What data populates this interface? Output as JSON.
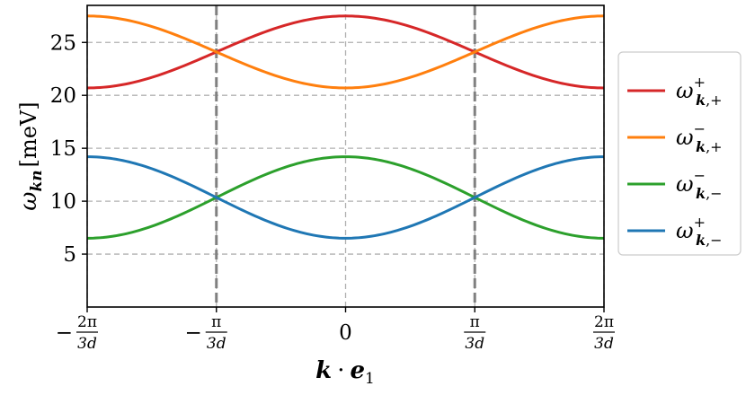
{
  "chart_data": {
    "type": "line",
    "xlabel": "k · e₁",
    "ylabel": "ω_{kn} [meV]",
    "xlim": [
      -2.0944,
      2.0944
    ],
    "ylim": [
      0,
      28.5
    ],
    "x_ticks": [
      {
        "value": -2.0944,
        "sign": "−",
        "num": "2π",
        "den": "3d"
      },
      {
        "value": -1.0472,
        "sign": "−",
        "num": "π",
        "den": "3d"
      },
      {
        "value": 0,
        "plain": "0"
      },
      {
        "value": 1.0472,
        "sign": "",
        "num": "π",
        "den": "3d"
      },
      {
        "value": 2.0944,
        "sign": "",
        "num": "2π",
        "den": "3d"
      }
    ],
    "y_ticks": [
      5,
      10,
      15,
      20,
      25
    ],
    "grid": true,
    "vertical_dashed_lines": [
      -1.0472,
      1.0472
    ],
    "legend_placement": "outside-right",
    "series": [
      {
        "name": "ω⁺_{k,+}",
        "color": "#d62728",
        "x": [
          -2.0944,
          -1.5708,
          -1.0472,
          -0.5236,
          0,
          0.5236,
          1.0472,
          1.5708,
          2.0944
        ],
        "y": [
          20.7,
          22.0,
          24.5,
          26.8,
          27.5,
          26.8,
          24.5,
          22.0,
          20.7
        ]
      },
      {
        "name": "ω⁻_{k,+}",
        "color": "#ff7f0e",
        "x": [
          -2.0944,
          -1.5708,
          -1.0472,
          -0.5236,
          0,
          0.5236,
          1.0472,
          1.5708,
          2.0944
        ],
        "y": [
          27.5,
          26.8,
          24.5,
          22.0,
          20.7,
          22.0,
          24.5,
          26.8,
          27.5
        ]
      },
      {
        "name": "ω⁻_{k,−}",
        "color": "#2ca02c",
        "x": [
          -2.0944,
          -1.5708,
          -1.0472,
          -0.5236,
          0,
          0.5236,
          1.0472,
          1.5708,
          2.0944
        ],
        "y": [
          6.5,
          7.0,
          8.8,
          12.0,
          14.2,
          12.0,
          8.8,
          7.0,
          6.5
        ]
      },
      {
        "name": "ω⁺_{k,−}",
        "color": "#1f77b4",
        "x": [
          -2.0944,
          -1.5708,
          -1.0472,
          -0.5236,
          0,
          0.5236,
          1.0472,
          1.5708,
          2.0944
        ],
        "y": [
          14.2,
          12.0,
          8.8,
          7.0,
          6.5,
          7.0,
          8.8,
          12.0,
          14.2
        ]
      }
    ]
  },
  "legend": [
    {
      "base": "ω",
      "sup": "+",
      "sub_k": "k",
      "sub_sign": "+",
      "color": "#d62728"
    },
    {
      "base": "ω",
      "sup": "−",
      "sub_k": "k",
      "sub_sign": "+",
      "color": "#ff7f0e"
    },
    {
      "base": "ω",
      "sup": "−",
      "sub_k": "k",
      "sub_sign": "−",
      "color": "#2ca02c"
    },
    {
      "base": "ω",
      "sup": "+",
      "sub_k": "k",
      "sub_sign": "−",
      "color": "#1f77b4"
    }
  ],
  "axis_labels": {
    "ylabel_omega": "ω",
    "ylabel_sub": "kn",
    "ylabel_unit": "[meV]",
    "xlabel_k": "k",
    "xlabel_dot": "·",
    "xlabel_e": "e",
    "xlabel_sub": "1"
  }
}
